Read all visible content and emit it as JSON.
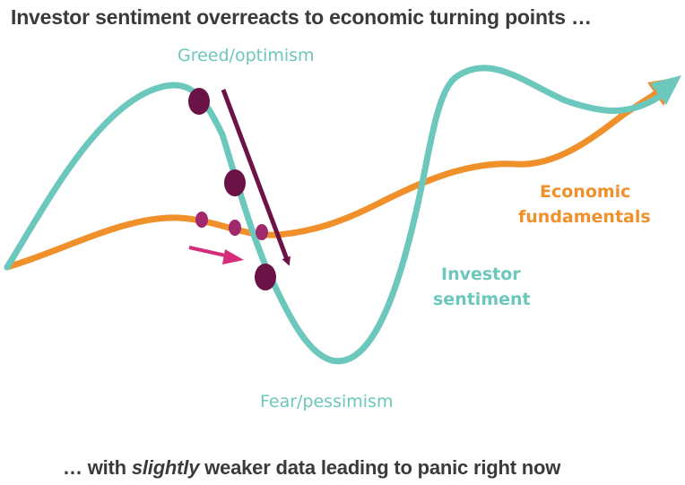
{
  "title": "Investor sentiment overreacts to economic turning points …",
  "subtitle": {
    "prefix": "… with ",
    "emphasis": "slightly",
    "suffix": " weaker data leading to panic right now"
  },
  "labels": {
    "greed": "Greed/optimism",
    "fear": "Fear/pessimism",
    "economic_line1": "Economic",
    "economic_line2": "fundamentals",
    "sentiment_line1": "Investor",
    "sentiment_line2": "sentiment"
  },
  "colors": {
    "sentiment": "#6cc7bc",
    "fundamentals": "#f0902a",
    "dark_dots": "#6b1346",
    "small_dots": "#a0296e",
    "magenta_arrow": "#d62d7b",
    "text_dark": "#3a3a3a"
  }
}
